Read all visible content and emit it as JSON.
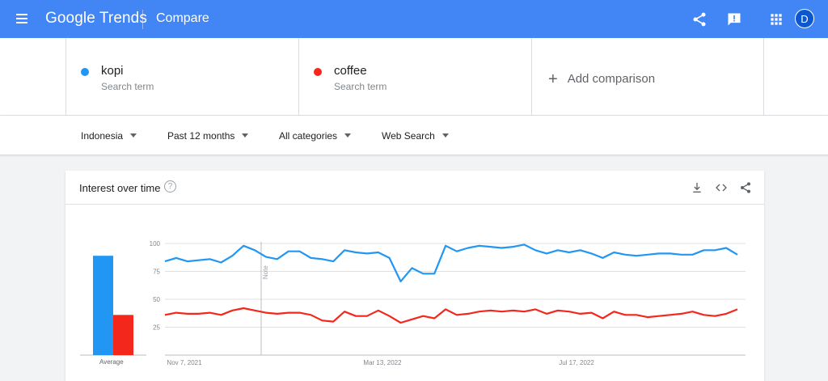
{
  "header": {
    "logo_google": "Google",
    "logo_trends": "Trends",
    "page_title": "Compare",
    "avatar_initial": "D"
  },
  "terms": [
    {
      "name": "kopi",
      "sub": "Search term",
      "color": "#2196f3"
    },
    {
      "name": "coffee",
      "sub": "Search term",
      "color": "#f4271c"
    }
  ],
  "add_comparison": "Add comparison",
  "filters": {
    "region": "Indonesia",
    "time": "Past 12 months",
    "category": "All categories",
    "search_type": "Web Search"
  },
  "card": {
    "title": "Interest over time",
    "help_glyph": "?"
  },
  "chart_data": {
    "type": "line",
    "ylim": [
      0,
      100
    ],
    "y_ticks": [
      "100",
      "75",
      "50",
      "25"
    ],
    "x_tick_labels": [
      "Nov 7, 2021",
      "Mar 13, 2022",
      "Jul 17, 2022"
    ],
    "note_label": "Note",
    "average_label": "Average",
    "series": [
      {
        "name": "kopi",
        "color": "#2196f3",
        "average": 89,
        "values": [
          84,
          87,
          84,
          85,
          86,
          83,
          89,
          98,
          94,
          88,
          86,
          93,
          93,
          87,
          86,
          84,
          94,
          92,
          91,
          92,
          87,
          66,
          78,
          73,
          73,
          98,
          93,
          96,
          98,
          97,
          96,
          97,
          99,
          94,
          91,
          94,
          92,
          94,
          91,
          87,
          92,
          90,
          89,
          90,
          91,
          91,
          90,
          90,
          94,
          94,
          96,
          90
        ]
      },
      {
        "name": "coffee",
        "color": "#f4271c",
        "average": 36,
        "values": [
          36,
          38,
          37,
          37,
          38,
          36,
          40,
          42,
          40,
          38,
          37,
          38,
          38,
          36,
          31,
          30,
          39,
          35,
          35,
          40,
          35,
          29,
          32,
          35,
          33,
          41,
          36,
          37,
          39,
          40,
          39,
          40,
          39,
          41,
          37,
          40,
          39,
          37,
          38,
          33,
          39,
          36,
          36,
          34,
          35,
          36,
          37,
          39,
          36,
          35,
          37,
          41
        ]
      }
    ]
  }
}
